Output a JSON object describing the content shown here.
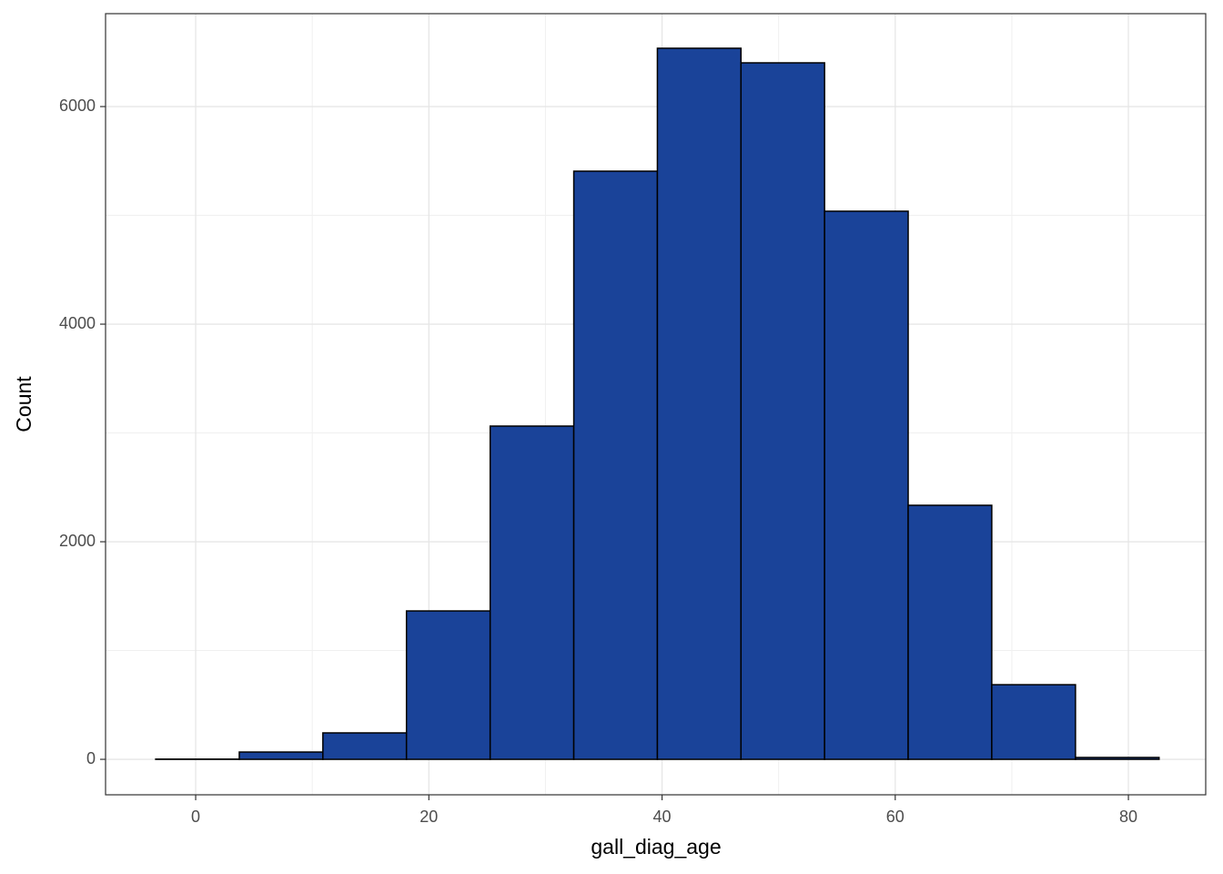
{
  "chart_data": {
    "type": "histogram",
    "x_label": "gall_diag_age",
    "y_label": "Count",
    "bins": [
      -3.43,
      3.74,
      10.91,
      18.08,
      25.26,
      32.43,
      39.6,
      46.77,
      53.94,
      61.11,
      68.28,
      75.46,
      82.63
    ],
    "values": [
      2,
      67,
      243,
      1364,
      3063,
      5406,
      6536,
      6402,
      5038,
      2335,
      686,
      17
    ],
    "color": "#1a4399",
    "xlim": [
      -7.73,
      86.63
    ],
    "xticks": [
      0,
      20,
      40,
      60,
      80
    ],
    "x_minor_grid": [
      10,
      30,
      50,
      70
    ],
    "ylim": [
      -326,
      6854
    ],
    "yticks": [
      0,
      2000,
      4000,
      6000
    ],
    "y_minor_grid": [
      1000,
      3000,
      5000
    ],
    "grid": true
  }
}
